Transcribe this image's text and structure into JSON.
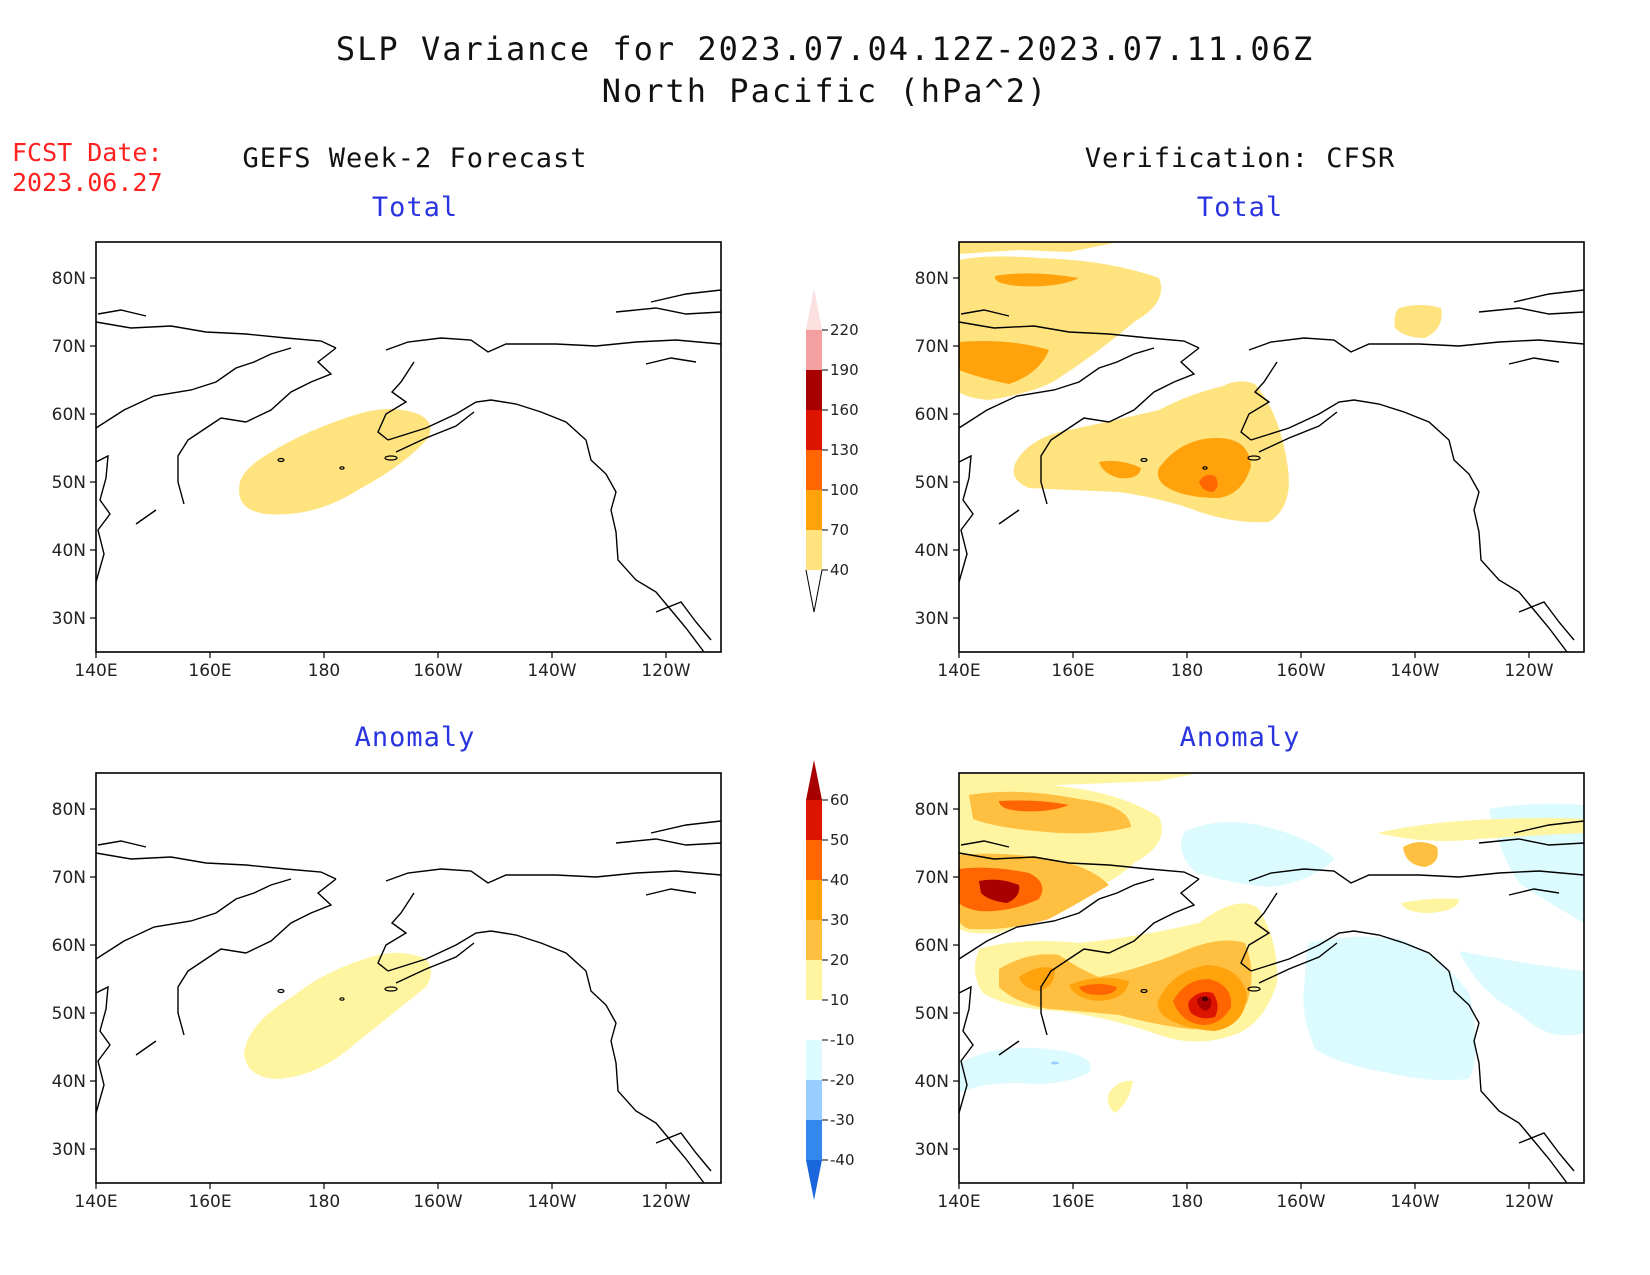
{
  "title": {
    "line1": "SLP Variance for 2023.07.04.12Z-2023.07.11.06Z",
    "line2": "North Pacific (hPa^2)"
  },
  "fcst": {
    "label": "FCST Date:",
    "date": "2023.06.27"
  },
  "columns": {
    "left": "GEFS Week-2 Forecast",
    "right": "Verification: CFSR"
  },
  "panels": {
    "forecast_total": "Total",
    "cfsr_total": "Total",
    "forecast_anomaly": "Anomaly",
    "cfsr_anomaly": "Anomaly"
  },
  "axes": {
    "lat_labels": [
      "80N",
      "70N",
      "60N",
      "50N",
      "40N",
      "30N"
    ],
    "lon_labels": [
      "140E",
      "160E",
      "180",
      "160W",
      "140W",
      "120W"
    ]
  },
  "colorbar_total": {
    "levels": [
      "40",
      "70",
      "100",
      "130",
      "160",
      "190",
      "220"
    ],
    "colors": [
      "#fee37f",
      "#ffa20c",
      "#ff6500",
      "#dd1500",
      "#a80000",
      "#f4a0a0",
      "#fde0e0"
    ]
  },
  "colorbar_anomaly": {
    "levels": [
      "60",
      "50",
      "40",
      "30",
      "20",
      "10",
      "-10",
      "-20",
      "-30",
      "-40"
    ],
    "colors": [
      "#a80000",
      "#dd1500",
      "#ff6500",
      "#ffa20c",
      "#ffbf40",
      "#fff5a0",
      "#ffffff",
      "#dcfbff",
      "#99ccff",
      "#3388ee",
      "#1a66dd"
    ]
  }
}
